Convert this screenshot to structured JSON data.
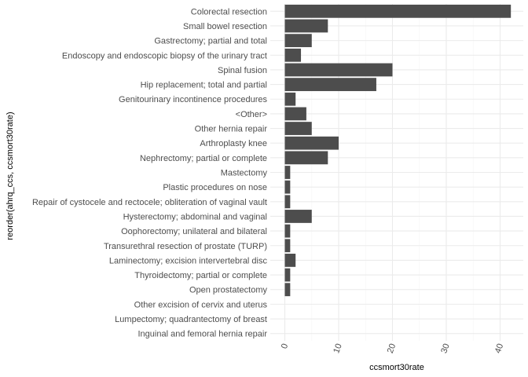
{
  "chart_data": {
    "type": "bar",
    "orientation": "horizontal",
    "title": "",
    "xlabel": "ccsmort30rate",
    "ylabel": "reorder(ahrq_ccs, ccsmort30rate)",
    "xlim": [
      -0.5,
      44
    ],
    "x_ticks": [
      0,
      10,
      20,
      30,
      40
    ],
    "grid": true,
    "bar_color": "#4d4d4d",
    "grid_major_color": "#ebebeb",
    "grid_minor_color": "#f5f5f5",
    "categories": [
      "Colorectal resection",
      "Small bowel resection",
      "Gastrectomy; partial and total",
      "Endoscopy and endoscopic biopsy of the urinary tract",
      "Spinal fusion",
      "Hip replacement; total and partial",
      "Genitourinary incontinence procedures",
      "<Other>",
      "Other hernia repair",
      "Arthroplasty knee",
      "Nephrectomy; partial or complete",
      "Mastectomy",
      "Plastic procedures on nose",
      "Repair of cystocele and rectocele; obliteration of vaginal vault",
      "Hysterectomy; abdominal and vaginal",
      "Oophorectomy; unilateral and bilateral",
      "Transurethral resection of prostate (TURP)",
      "Laminectomy; excision intervertebral disc",
      "Thyroidectomy; partial or complete",
      "Open prostatectomy",
      "Other excision of cervix and uterus",
      "Lumpectomy; quadrantectomy of breast",
      "Inguinal and femoral hernia repair"
    ],
    "values": [
      42,
      8,
      5,
      3,
      20,
      17,
      2,
      4,
      5,
      10,
      8,
      1,
      1,
      1,
      5,
      1,
      1,
      2,
      1,
      1,
      0,
      0,
      0
    ]
  }
}
